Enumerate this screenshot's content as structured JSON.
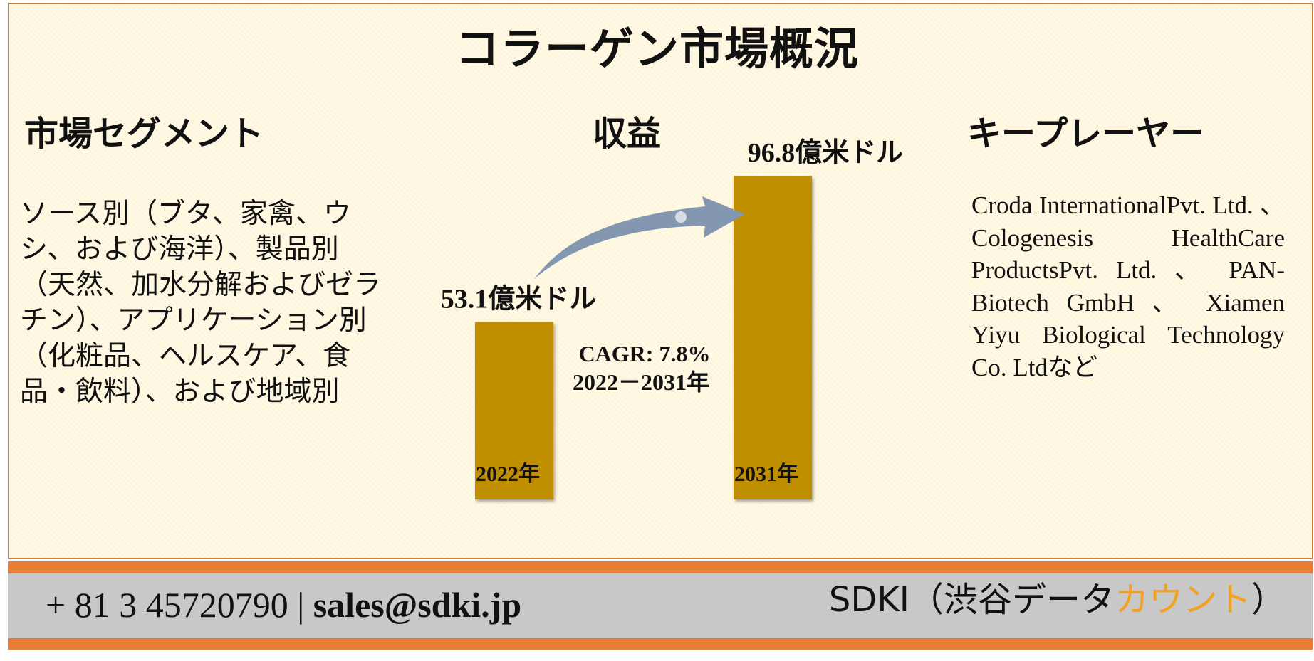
{
  "title": "コラーゲン市場概況",
  "segments": {
    "heading": "市場セグメント",
    "text": "ソース別（ブタ、家禽、ウシ、および海洋）、製品別（天然、加水分解およびゼラチン）、アプリケーション別（化粧品、ヘルスケア、食品・飲料）、および地域別"
  },
  "revenue": {
    "heading": "収益"
  },
  "key_players": {
    "heading": "キープレーヤー",
    "text": "Croda InternationalPvt. Ltd. 、 Cologenesis HealthCare ProductsPvt. Ltd. 、 PAN-Biotech GmbH 、 Xiamen Yiyu Biological Technology Co. Ltdなど"
  },
  "chart_data": {
    "type": "bar",
    "categories": [
      "2022年",
      "2031年"
    ],
    "values": [
      53.1,
      96.8
    ],
    "value_labels": [
      "53.1億米ドル",
      "96.8億米ドル"
    ],
    "annotation_lines": [
      "CAGR: 7.8%",
      "2022－2031年"
    ],
    "bar_color": "#bf8f00",
    "arrow_color": "#8497b0"
  },
  "footer": {
    "phone": "+ 81 3 45720790",
    "separator": "|",
    "email": "sales@sdki.jp",
    "brand_prefix": "SDKI（渋谷データ",
    "brand_accent": "カウント",
    "brand_suffix": "）",
    "accent_color": "#f4a020",
    "bar_color": "#e87e35"
  }
}
